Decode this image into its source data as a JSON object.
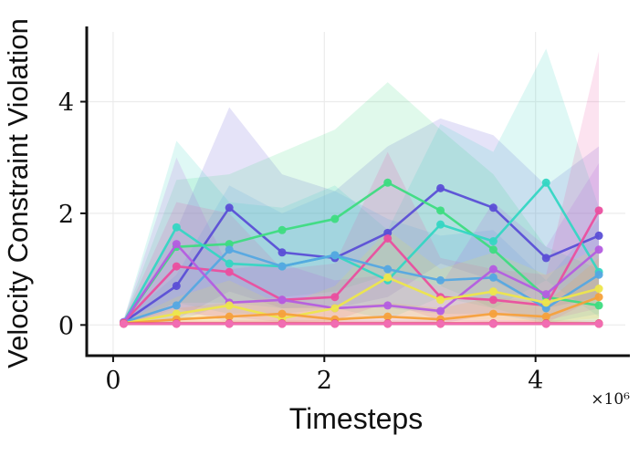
{
  "chart_data": {
    "type": "line",
    "title": "",
    "xlabel": "Timesteps",
    "ylabel": "Velocity Constraint Violation",
    "x_offset_label": "×10⁶",
    "legend": "none",
    "grid": true,
    "xlim": [
      -250000,
      4850000
    ],
    "ylim": [
      -0.55,
      5.25
    ],
    "x_ticks": [
      0,
      2000000,
      4000000
    ],
    "x_tick_labels": [
      "0",
      "2",
      "4"
    ],
    "y_ticks": [
      0,
      2,
      4
    ],
    "y_tick_labels": [
      "0",
      "2",
      "4"
    ],
    "x": [
      100000,
      600000,
      1100000,
      1600000,
      2100000,
      2600000,
      3100000,
      3600000,
      4100000,
      4600000
    ],
    "series": [
      {
        "name": "indigo",
        "color": "#5b4fd6",
        "mean": [
          0.05,
          0.7,
          2.1,
          1.3,
          1.2,
          1.65,
          2.45,
          2.1,
          1.2,
          1.6
        ],
        "band_hi": [
          0.1,
          1.7,
          3.9,
          2.7,
          2.4,
          3.2,
          3.7,
          3.4,
          2.5,
          3.2
        ],
        "band_lo": [
          0.0,
          0.1,
          0.6,
          0.3,
          0.3,
          0.5,
          1.1,
          0.8,
          0.3,
          0.5
        ]
      },
      {
        "name": "green",
        "color": "#3edc81",
        "mean": [
          0.05,
          1.4,
          1.45,
          1.7,
          1.9,
          2.55,
          2.05,
          1.35,
          0.5,
          0.35
        ],
        "band_hi": [
          0.1,
          2.6,
          2.7,
          3.1,
          3.5,
          4.35,
          3.5,
          2.7,
          1.4,
          1.0
        ],
        "band_lo": [
          0.0,
          0.4,
          0.4,
          0.5,
          0.6,
          0.9,
          0.7,
          0.3,
          0.05,
          0.02
        ]
      },
      {
        "name": "teal",
        "color": "#35d6c3",
        "mean": [
          0.05,
          1.75,
          1.1,
          1.05,
          1.25,
          0.8,
          1.8,
          1.5,
          2.55,
          0.95
        ],
        "band_hi": [
          0.1,
          3.3,
          2.2,
          2.1,
          2.5,
          1.7,
          3.6,
          3.1,
          4.95,
          2.1
        ],
        "band_lo": [
          0.0,
          0.4,
          0.2,
          0.2,
          0.3,
          0.1,
          0.5,
          0.3,
          0.8,
          0.15
        ]
      },
      {
        "name": "magenta",
        "color": "#ea4f9f",
        "mean": [
          0.05,
          1.05,
          0.95,
          0.45,
          0.5,
          1.55,
          0.5,
          0.45,
          0.35,
          2.05
        ],
        "band_hi": [
          0.1,
          2.2,
          2.0,
          1.0,
          1.1,
          3.1,
          1.2,
          1.0,
          0.9,
          4.9
        ],
        "band_lo": [
          0.0,
          0.2,
          0.15,
          0.05,
          0.08,
          0.4,
          0.08,
          0.05,
          0.03,
          0.5
        ]
      },
      {
        "name": "lightblue",
        "color": "#55a8e2",
        "mean": [
          0.05,
          0.35,
          1.35,
          1.05,
          1.25,
          1.0,
          0.8,
          0.85,
          0.3,
          0.9
        ],
        "band_hi": [
          0.1,
          0.9,
          2.5,
          2.0,
          2.4,
          1.9,
          1.6,
          1.7,
          0.8,
          1.9
        ],
        "band_lo": [
          0.0,
          0.05,
          0.4,
          0.3,
          0.35,
          0.3,
          0.2,
          0.2,
          0.03,
          0.2
        ]
      },
      {
        "name": "purple",
        "color": "#b45de0",
        "mean": [
          0.05,
          1.45,
          0.4,
          0.45,
          0.3,
          0.35,
          0.25,
          1.0,
          0.55,
          1.35
        ],
        "band_hi": [
          0.1,
          3.0,
          1.0,
          1.1,
          0.8,
          0.9,
          0.7,
          2.2,
          1.4,
          2.9
        ],
        "band_lo": [
          0.0,
          0.3,
          0.05,
          0.05,
          0.03,
          0.04,
          0.02,
          0.2,
          0.08,
          0.3
        ]
      },
      {
        "name": "yellow",
        "color": "#ede64c",
        "mean": [
          0.03,
          0.2,
          0.35,
          0.12,
          0.3,
          0.85,
          0.45,
          0.6,
          0.4,
          0.65
        ],
        "band_hi": [
          0.06,
          0.5,
          0.8,
          0.35,
          0.7,
          1.7,
          1.0,
          1.3,
          0.9,
          1.4
        ],
        "band_lo": [
          0.0,
          0.03,
          0.05,
          0.02,
          0.05,
          0.2,
          0.08,
          0.1,
          0.05,
          0.12
        ]
      },
      {
        "name": "orange",
        "color": "#f6a13c",
        "mean": [
          0.03,
          0.1,
          0.15,
          0.2,
          0.1,
          0.15,
          0.1,
          0.2,
          0.15,
          0.5
        ],
        "band_hi": [
          0.06,
          0.3,
          0.4,
          0.5,
          0.3,
          0.4,
          0.3,
          0.5,
          0.4,
          1.2
        ],
        "band_lo": [
          0.0,
          0.01,
          0.02,
          0.03,
          0.01,
          0.02,
          0.01,
          0.03,
          0.02,
          0.08
        ]
      },
      {
        "name": "crimson",
        "color": "#dd4a6e",
        "mean": [
          0.03,
          0.03,
          0.03,
          0.03,
          0.03,
          0.03,
          0.03,
          0.03,
          0.03,
          0.03
        ],
        "band_hi": [
          0.08,
          0.08,
          0.08,
          0.08,
          0.08,
          0.08,
          0.08,
          0.08,
          0.08,
          0.08
        ],
        "band_lo": [
          0.0,
          0.0,
          0.0,
          0.0,
          0.0,
          0.0,
          0.0,
          0.0,
          0.0,
          0.0
        ]
      },
      {
        "name": "red",
        "color": "#ee5c5c",
        "mean": [
          0.02,
          0.02,
          0.02,
          0.02,
          0.02,
          0.02,
          0.02,
          0.02,
          0.02,
          0.02
        ],
        "band_hi": [
          0.05,
          0.05,
          0.05,
          0.05,
          0.05,
          0.05,
          0.05,
          0.05,
          0.05,
          0.05
        ],
        "band_lo": [
          0.0,
          0.0,
          0.0,
          0.0,
          0.0,
          0.0,
          0.0,
          0.0,
          0.0,
          0.0
        ]
      },
      {
        "name": "pink",
        "color": "#f06eb4",
        "mean": [
          0.02,
          0.02,
          0.02,
          0.02,
          0.02,
          0.02,
          0.02,
          0.02,
          0.02,
          0.02
        ],
        "band_hi": [
          0.05,
          0.05,
          0.05,
          0.05,
          0.05,
          0.05,
          0.05,
          0.05,
          0.05,
          0.05
        ],
        "band_lo": [
          0.0,
          0.0,
          0.0,
          0.0,
          0.0,
          0.0,
          0.0,
          0.0,
          0.0,
          0.0
        ]
      }
    ]
  }
}
